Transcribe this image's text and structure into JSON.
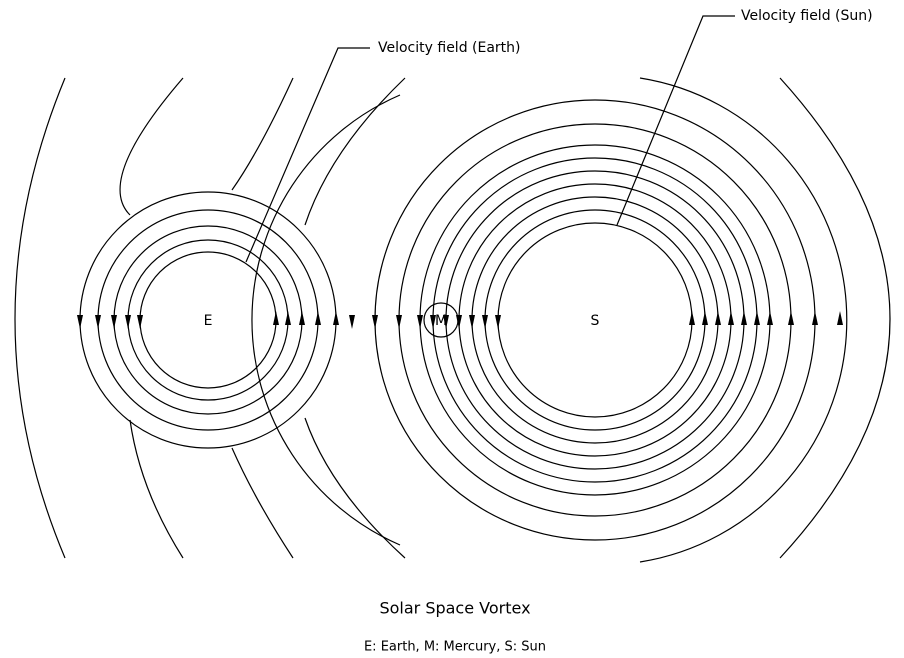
{
  "labels": {
    "earth_field": "Velocity field (Earth)",
    "sun_field": "Velocity field (Sun)",
    "earth": "E",
    "mercury": "M",
    "sun": "S"
  },
  "title": "Solar Space Vortex",
  "caption": "E: Earth,  M: Mercury,  S: Sun"
}
